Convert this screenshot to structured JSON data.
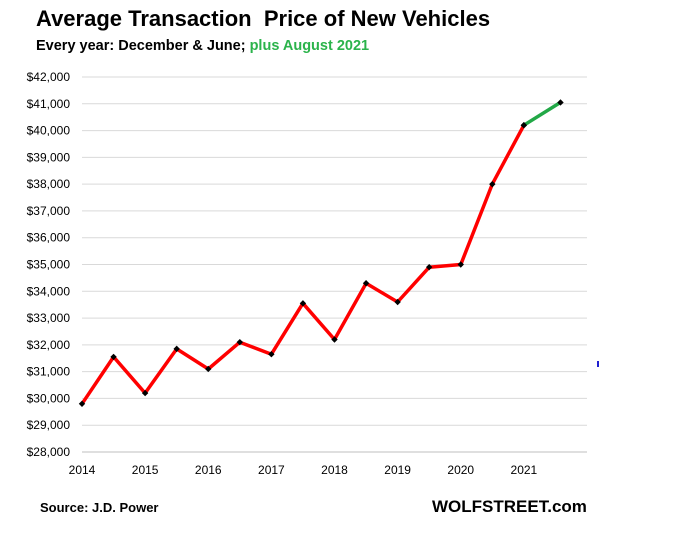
{
  "chart_data": {
    "type": "line",
    "title": "Average Transaction  Price of New Vehicles",
    "subtitle_main": "Every year: December & June; ",
    "subtitle_accent": "plus August 2021",
    "x_ticks": [
      "2014",
      "2015",
      "2016",
      "2017",
      "2018",
      "2019",
      "2020",
      "2021"
    ],
    "y_ticks": [
      "$42,000",
      "$41,000",
      "$40,000",
      "$39,000",
      "$38,000",
      "$37,000",
      "$36,000",
      "$35,000",
      "$34,000",
      "$33,000",
      "$32,000",
      "$31,000",
      "$30,000",
      "$29,000",
      "$28,000"
    ],
    "xlim": [
      2014,
      2022
    ],
    "ylim": [
      28000,
      42000
    ],
    "grid": true,
    "series": [
      {
        "color": "#ff0000",
        "x": [
          2014.0,
          2014.5,
          2015.0,
          2015.5,
          2016.0,
          2016.5,
          2017.0,
          2017.5,
          2018.0,
          2018.5,
          2019.0,
          2019.5,
          2020.0,
          2020.5,
          2021.0
        ],
        "y": [
          29800,
          31550,
          30200,
          31850,
          31100,
          32100,
          31650,
          33550,
          32200,
          34300,
          33600,
          34900,
          35000,
          38000,
          40200
        ]
      },
      {
        "color": "#22a847",
        "x": [
          2021.0,
          2021.58
        ],
        "y": [
          40200,
          41050
        ]
      }
    ],
    "marker_color": "#000000"
  },
  "footer": {
    "source": "Source: J.D. Power",
    "brand": "WOLFSTREET.com"
  }
}
